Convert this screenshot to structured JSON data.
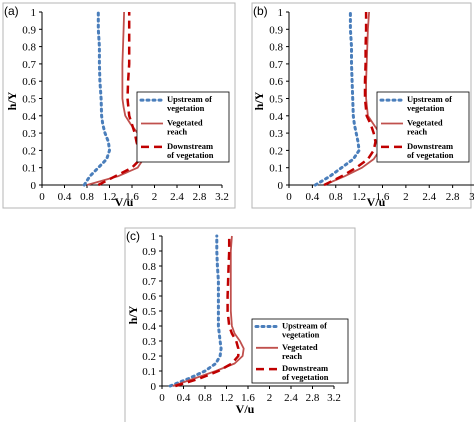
{
  "chart_data": [
    {
      "panel_label": "(a)",
      "type": "line",
      "xlabel": "V/u",
      "ylabel": "h/Y",
      "xlim": [
        0,
        3.2
      ],
      "ylim": [
        0,
        1
      ],
      "xticks": [
        "0",
        "0.4",
        "0.8",
        "1.2",
        "1.6",
        "2",
        "2.4",
        "2.8",
        "3.2"
      ],
      "yticks": [
        "0",
        "0.1",
        "0.2",
        "0.3",
        "0.4",
        "0.5",
        "0.6",
        "0.7",
        "0.8",
        "0.9",
        "1"
      ],
      "legend_position": "right",
      "series": [
        {
          "name": "Upstream of vegetation",
          "style": "dotted",
          "color": "#4a7ebb",
          "points": [
            [
              0.75,
              0
            ],
            [
              0.85,
              0.05
            ],
            [
              1.0,
              0.1
            ],
            [
              1.15,
              0.15
            ],
            [
              1.2,
              0.2
            ],
            [
              1.18,
              0.25
            ],
            [
              1.12,
              0.3
            ],
            [
              1.08,
              0.35
            ],
            [
              1.06,
              0.4
            ],
            [
              1.05,
              0.5
            ],
            [
              1.03,
              0.6
            ],
            [
              1.02,
              0.7
            ],
            [
              1.02,
              0.8
            ],
            [
              1.0,
              0.9
            ],
            [
              1.0,
              1.0
            ]
          ]
        },
        {
          "name": "Vegetated reach",
          "style": "solid",
          "color": "#c0504d",
          "points": [
            [
              0.8,
              0
            ],
            [
              1.35,
              0.05
            ],
            [
              1.7,
              0.1
            ],
            [
              1.8,
              0.15
            ],
            [
              1.82,
              0.2
            ],
            [
              1.78,
              0.25
            ],
            [
              1.7,
              0.3
            ],
            [
              1.58,
              0.35
            ],
            [
              1.48,
              0.4
            ],
            [
              1.45,
              0.45
            ],
            [
              1.43,
              0.5
            ],
            [
              1.43,
              0.6
            ],
            [
              1.43,
              0.7
            ],
            [
              1.44,
              0.8
            ],
            [
              1.45,
              0.9
            ],
            [
              1.46,
              1.0
            ]
          ]
        },
        {
          "name": "Downstream of vegetation",
          "style": "dashed",
          "color": "#c00000",
          "points": [
            [
              1.0,
              0
            ],
            [
              1.3,
              0.05
            ],
            [
              1.6,
              0.1
            ],
            [
              1.75,
              0.15
            ],
            [
              1.72,
              0.2
            ],
            [
              1.68,
              0.25
            ],
            [
              1.65,
              0.3
            ],
            [
              1.6,
              0.35
            ],
            [
              1.55,
              0.4
            ],
            [
              1.52,
              0.5
            ],
            [
              1.53,
              0.6
            ],
            [
              1.55,
              0.7
            ],
            [
              1.55,
              0.8
            ],
            [
              1.55,
              0.9
            ],
            [
              1.55,
              1.0
            ]
          ]
        }
      ]
    },
    {
      "panel_label": "(b)",
      "type": "line",
      "xlabel": "V/u",
      "ylabel": "h/Y",
      "xlim": [
        0,
        3.2
      ],
      "ylim": [
        0,
        1
      ],
      "xticks": [
        "0",
        "0.4",
        "0.8",
        "1.2",
        "1.6",
        "2",
        "2.4",
        "2.8",
        "3.2"
      ],
      "yticks": [
        "0",
        "0.1",
        "0.2",
        "0.3",
        "0.4",
        "0.5",
        "0.6",
        "0.7",
        "0.8",
        "0.9",
        "1"
      ],
      "legend_position": "right",
      "series": [
        {
          "name": "Upstream of vegetation",
          "style": "dotted",
          "color": "#4a7ebb",
          "points": [
            [
              0.45,
              0
            ],
            [
              0.7,
              0.05
            ],
            [
              0.9,
              0.1
            ],
            [
              1.1,
              0.15
            ],
            [
              1.2,
              0.2
            ],
            [
              1.18,
              0.25
            ],
            [
              1.15,
              0.3
            ],
            [
              1.12,
              0.35
            ],
            [
              1.1,
              0.4
            ],
            [
              1.09,
              0.5
            ],
            [
              1.08,
              0.6
            ],
            [
              1.07,
              0.7
            ],
            [
              1.07,
              0.8
            ],
            [
              1.05,
              0.9
            ],
            [
              1.05,
              1.0
            ]
          ]
        },
        {
          "name": "Vegetated reach",
          "style": "solid",
          "color": "#c0504d",
          "points": [
            [
              0.6,
              0
            ],
            [
              0.95,
              0.05
            ],
            [
              1.25,
              0.1
            ],
            [
              1.45,
              0.15
            ],
            [
              1.55,
              0.2
            ],
            [
              1.58,
              0.25
            ],
            [
              1.55,
              0.3
            ],
            [
              1.45,
              0.35
            ],
            [
              1.35,
              0.4
            ],
            [
              1.32,
              0.5
            ],
            [
              1.32,
              0.6
            ],
            [
              1.33,
              0.7
            ],
            [
              1.34,
              0.8
            ],
            [
              1.35,
              0.9
            ],
            [
              1.37,
              1.0
            ]
          ]
        },
        {
          "name": "Downstream of vegetation",
          "style": "dashed",
          "color": "#c00000",
          "points": [
            [
              0.6,
              0
            ],
            [
              0.9,
              0.05
            ],
            [
              1.15,
              0.1
            ],
            [
              1.35,
              0.15
            ],
            [
              1.45,
              0.2
            ],
            [
              1.48,
              0.25
            ],
            [
              1.45,
              0.3
            ],
            [
              1.4,
              0.35
            ],
            [
              1.33,
              0.4
            ],
            [
              1.3,
              0.5
            ],
            [
              1.3,
              0.6
            ],
            [
              1.31,
              0.7
            ],
            [
              1.31,
              0.8
            ],
            [
              1.32,
              0.9
            ],
            [
              1.32,
              1.0
            ]
          ]
        }
      ]
    },
    {
      "panel_label": "(c)",
      "type": "line",
      "xlabel": "V/u",
      "ylabel": "h/Y",
      "xlim": [
        0,
        3.2
      ],
      "ylim": [
        0,
        1
      ],
      "xticks": [
        "0",
        "0.4",
        "0.8",
        "1.2",
        "1.6",
        "2",
        "2.4",
        "2.8",
        "3.2"
      ],
      "yticks": [
        "0",
        "0.1",
        "0.2",
        "0.3",
        "0.4",
        "0.5",
        "0.6",
        "0.7",
        "0.8",
        "0.9",
        "1"
      ],
      "legend_position": "right",
      "series": [
        {
          "name": "Upstream of vegetation",
          "style": "dotted",
          "color": "#4a7ebb",
          "points": [
            [
              0.15,
              0
            ],
            [
              0.5,
              0.05
            ],
            [
              0.8,
              0.1
            ],
            [
              1.0,
              0.15
            ],
            [
              1.08,
              0.2
            ],
            [
              1.1,
              0.25
            ],
            [
              1.08,
              0.3
            ],
            [
              1.05,
              0.4
            ],
            [
              1.05,
              0.5
            ],
            [
              1.05,
              0.6
            ],
            [
              1.05,
              0.7
            ],
            [
              1.03,
              0.8
            ],
            [
              1.02,
              0.9
            ],
            [
              1.02,
              1.0
            ]
          ]
        },
        {
          "name": "Vegetated reach",
          "style": "solid",
          "color": "#c0504d",
          "points": [
            [
              0.2,
              0
            ],
            [
              0.6,
              0.05
            ],
            [
              1.0,
              0.1
            ],
            [
              1.35,
              0.15
            ],
            [
              1.5,
              0.2
            ],
            [
              1.52,
              0.25
            ],
            [
              1.45,
              0.3
            ],
            [
              1.35,
              0.35
            ],
            [
              1.3,
              0.4
            ],
            [
              1.28,
              0.5
            ],
            [
              1.28,
              0.6
            ],
            [
              1.28,
              0.7
            ],
            [
              1.28,
              0.8
            ],
            [
              1.28,
              0.9
            ],
            [
              1.3,
              1.0
            ]
          ]
        },
        {
          "name": "Downstream of vegetation",
          "style": "dashed",
          "color": "#c00000",
          "points": [
            [
              0.25,
              0
            ],
            [
              0.7,
              0.05
            ],
            [
              1.05,
              0.1
            ],
            [
              1.3,
              0.15
            ],
            [
              1.42,
              0.2
            ],
            [
              1.42,
              0.25
            ],
            [
              1.38,
              0.3
            ],
            [
              1.3,
              0.35
            ],
            [
              1.25,
              0.4
            ],
            [
              1.22,
              0.5
            ],
            [
              1.22,
              0.6
            ],
            [
              1.23,
              0.7
            ],
            [
              1.24,
              0.8
            ],
            [
              1.25,
              0.9
            ],
            [
              1.25,
              1.0
            ]
          ]
        }
      ]
    }
  ]
}
